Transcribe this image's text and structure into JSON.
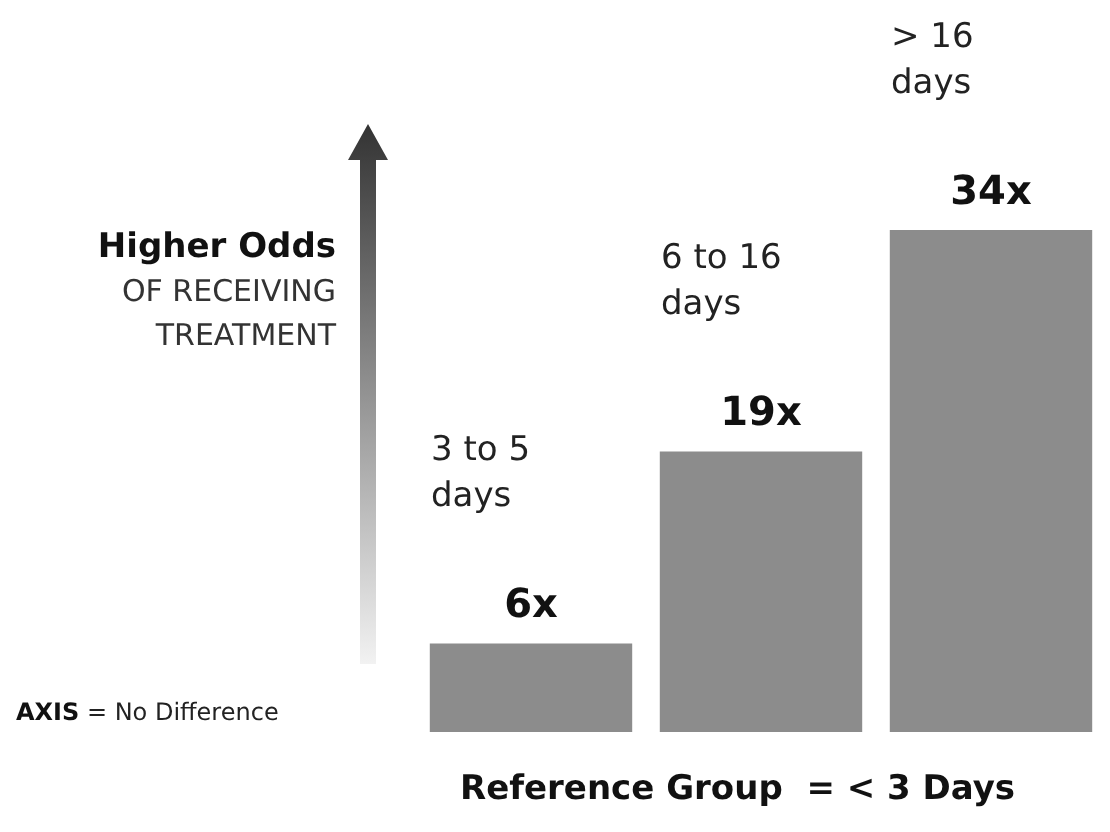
{
  "chart_data": {
    "type": "bar",
    "categories": [
      null,
      null,
      null
    ],
    "values": [
      6,
      19,
      34
    ],
    "value_labels": [
      "6x",
      "19x",
      "34x"
    ],
    "color": "#8c8c8c",
    "ylabel": "Higher Odds\nOF RECEIVING\nTREATMENT",
    "tick_labels": false,
    "annotations": [
      "3 to 5 days",
      "6 to 16 days",
      "> 16 days",
      "AXIS = No Difference",
      "Reference Group  = < 3 Days"
    ]
  }
}
